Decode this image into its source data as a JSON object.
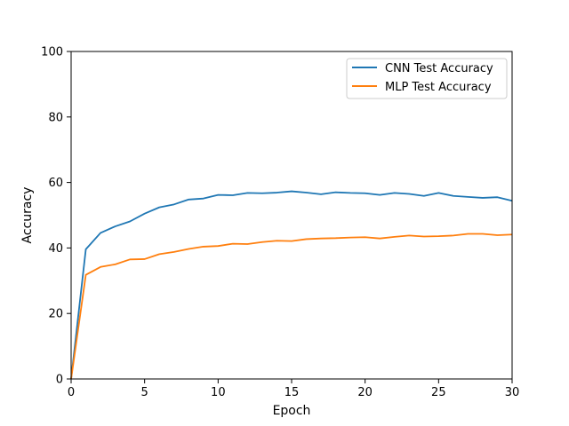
{
  "chart_data": {
    "type": "line",
    "title": "",
    "xlabel": "Epoch",
    "ylabel": "Accuracy",
    "xlim": [
      0,
      30
    ],
    "ylim": [
      0,
      100
    ],
    "xticks": [
      0,
      5,
      10,
      15,
      20,
      25,
      30
    ],
    "yticks": [
      0,
      20,
      40,
      60,
      80,
      100
    ],
    "grid": false,
    "legend_position": "top-right",
    "x": [
      0,
      1,
      2,
      3,
      4,
      5,
      6,
      7,
      8,
      9,
      10,
      11,
      12,
      13,
      14,
      15,
      16,
      17,
      18,
      19,
      20,
      21,
      22,
      23,
      24,
      25,
      26,
      27,
      28,
      29,
      30
    ],
    "series": [
      {
        "name": "CNN Test Accuracy",
        "color": "#1f77b4",
        "values": [
          0,
          39.6,
          44.6,
          46.6,
          48.1,
          50.5,
          52.4,
          53.3,
          54.8,
          55.1,
          56.2,
          56.1,
          56.8,
          56.7,
          56.9,
          57.3,
          56.9,
          56.4,
          57.0,
          56.8,
          56.7,
          56.2,
          56.8,
          56.5,
          55.9,
          56.8,
          55.9,
          55.6,
          55.3,
          55.5,
          54.4
        ]
      },
      {
        "name": "MLP Test Accuracy",
        "color": "#ff7f0e",
        "values": [
          0,
          31.8,
          34.2,
          35.0,
          36.5,
          36.6,
          38.1,
          38.8,
          39.7,
          40.4,
          40.6,
          41.3,
          41.2,
          41.8,
          42.2,
          42.1,
          42.7,
          42.9,
          43.0,
          43.2,
          43.3,
          42.9,
          43.4,
          43.8,
          43.5,
          43.6,
          43.8,
          44.3,
          44.3,
          43.9,
          44.1
        ]
      }
    ]
  }
}
